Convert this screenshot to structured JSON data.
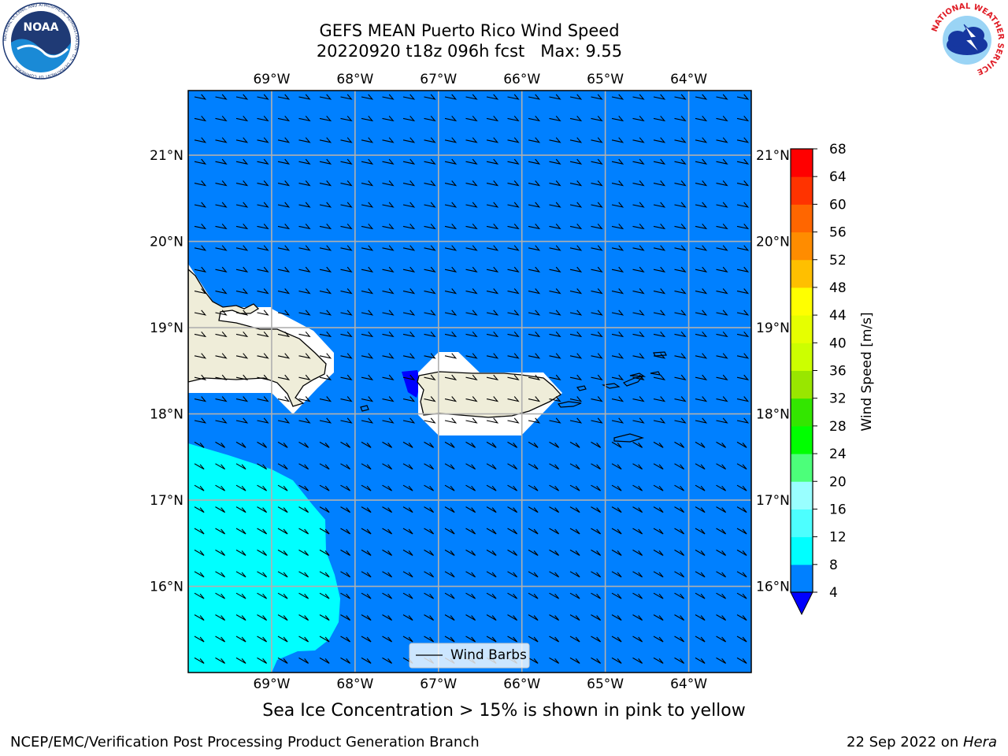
{
  "title_line1": "GEFS MEAN Puerto Rico Wind Speed",
  "title_line2": "20220920 t18z 096h fcst   Max: 9.55",
  "map": {
    "lon_labels": [
      "69°W",
      "68°W",
      "67°W",
      "66°W",
      "65°W",
      "64°W"
    ],
    "lat_labels": [
      "21°N",
      "20°N",
      "19°N",
      "18°N",
      "17°N",
      "16°N"
    ],
    "lon_range": [
      -70.0,
      -63.25
    ],
    "lat_range": [
      15.0,
      21.75
    ],
    "ocean_color": "#0080ff",
    "fill_8_12_color": "#00ffff",
    "fill_lt4_color": "#0000ff",
    "land_color": "#efedd9",
    "legend_label": "Wind Barbs"
  },
  "colorbar": {
    "label": "Wind Speed [m/s]",
    "ticks": [
      "4",
      "8",
      "12",
      "16",
      "20",
      "24",
      "28",
      "32",
      "36",
      "40",
      "44",
      "48",
      "52",
      "56",
      "60",
      "64",
      "68"
    ],
    "colors": [
      "#0080ff",
      "#00ffff",
      "#4dffff",
      "#99ffff",
      "#4cff7a",
      "#00ff00",
      "#33e600",
      "#99e600",
      "#ccff00",
      "#e6ff00",
      "#ffff00",
      "#ffbf00",
      "#ff8c00",
      "#ff6600",
      "#ff3300",
      "#ff0000"
    ],
    "extend_min_color": "#0000ff"
  },
  "sea_ice_note": "Sea Ice Concentration > 15% is shown in pink to yellow",
  "footer_left": "NCEP/EMC/Verification Post Processing Product Generation Branch",
  "footer_right_prefix": "22 Sep 2022 on ",
  "footer_right_machine": "Hera",
  "noaa_logo": {
    "text": "NOAA",
    "ring_text": "NATIONAL OCEANIC AND ATMOSPHERIC ADMINISTRATION · U.S. DEPARTMENT OF COMMERCE"
  },
  "nws_logo": {
    "ring_text": "NATIONAL WEATHER SERVICE"
  }
}
